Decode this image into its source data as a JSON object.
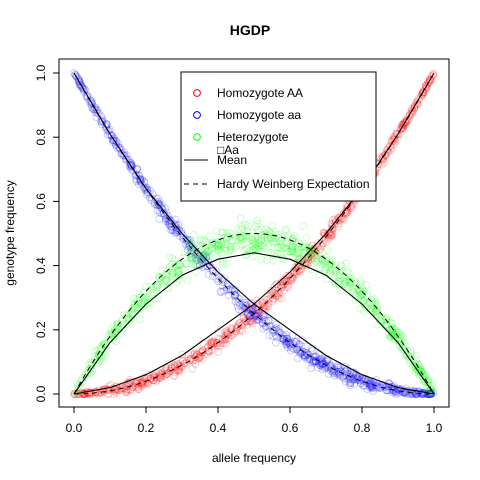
{
  "chart_data": {
    "type": "scatter",
    "title": "HGDP",
    "xlabel": "allele frequency",
    "ylabel": "genotype frequency",
    "xlim": [
      0,
      1
    ],
    "ylim": [
      0,
      1
    ],
    "x_ticks": [
      "0.0",
      "0.2",
      "0.4",
      "0.6",
      "0.8",
      "1.0"
    ],
    "y_ticks": [
      "0.0",
      "0.2",
      "0.4",
      "0.6",
      "0.8",
      "1.0"
    ],
    "grid": false,
    "legend_position": "top-right",
    "series": [
      {
        "name": "Homozygote AA",
        "color": "#ff0000",
        "marker": "open-circle",
        "trend": "p^2",
        "spread": 0.02,
        "mean_curve": {
          "x": [
            0.0,
            0.1,
            0.2,
            0.3,
            0.4,
            0.5,
            0.6,
            0.7,
            0.8,
            0.9,
            1.0
          ],
          "y": [
            0.0,
            0.02,
            0.06,
            0.12,
            0.2,
            0.28,
            0.38,
            0.5,
            0.64,
            0.81,
            1.0
          ]
        }
      },
      {
        "name": "Homozygote aa",
        "color": "#0000ff",
        "marker": "open-circle",
        "trend": "(1-p)^2",
        "spread": 0.02,
        "mean_curve": {
          "x": [
            0.0,
            0.1,
            0.2,
            0.3,
            0.4,
            0.5,
            0.6,
            0.7,
            0.8,
            0.9,
            1.0
          ],
          "y": [
            1.0,
            0.81,
            0.64,
            0.5,
            0.38,
            0.28,
            0.2,
            0.12,
            0.06,
            0.02,
            0.0
          ]
        }
      },
      {
        "name": "Heterozygote\n□Aa",
        "color": "#00ff00",
        "marker": "open-circle",
        "trend": "2p(1-p)",
        "spread": 0.04,
        "mean_curve": {
          "x": [
            0.0,
            0.1,
            0.2,
            0.3,
            0.4,
            0.5,
            0.6,
            0.7,
            0.8,
            0.9,
            1.0
          ],
          "y": [
            0.0,
            0.16,
            0.28,
            0.37,
            0.42,
            0.44,
            0.42,
            0.37,
            0.28,
            0.16,
            0.0
          ]
        }
      }
    ],
    "reference_lines": [
      {
        "name": "Mean",
        "style": "solid",
        "color": "#000000"
      },
      {
        "name": "Hardy Weinberg Expectation",
        "style": "dashed",
        "color": "#000000"
      }
    ],
    "legend": [
      {
        "label": "Homozygote AA",
        "symbol": "circle",
        "color": "#ff0000"
      },
      {
        "label": "Homozygote aa",
        "symbol": "circle",
        "color": "#0000ff"
      },
      {
        "label": "Heterozygote",
        "label2": "□Aa",
        "symbol": "circle",
        "color": "#00ff00"
      },
      {
        "label": "Mean",
        "symbol": "solid-line",
        "color": "#000000"
      },
      {
        "label": "Hardy Weinberg Expectation",
        "symbol": "dashed-line",
        "color": "#000000"
      }
    ]
  }
}
